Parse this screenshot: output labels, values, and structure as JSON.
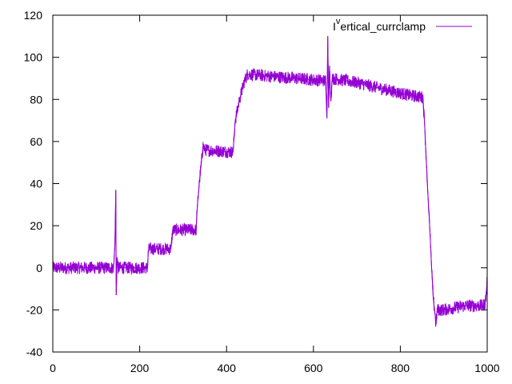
{
  "chart_data": {
    "type": "line",
    "title": "",
    "xlabel": "",
    "ylabel": "",
    "xlim": [
      0,
      1000
    ],
    "ylim": [
      -40,
      120
    ],
    "x_ticks": [
      0,
      200,
      400,
      600,
      800,
      1000
    ],
    "y_ticks": [
      -40,
      -20,
      0,
      20,
      40,
      60,
      80,
      100,
      120
    ],
    "grid": false,
    "legend_position": "top-right",
    "series": [
      {
        "name": "I^vertical_currclamp",
        "color": "#9400d3",
        "noise_amplitude": 3,
        "points": [
          [
            0,
            0
          ],
          [
            140,
            0
          ],
          [
            143,
            11
          ],
          [
            145,
            37
          ],
          [
            146,
            -13
          ],
          [
            148,
            5
          ],
          [
            150,
            0
          ],
          [
            218,
            0
          ],
          [
            220,
            8
          ],
          [
            222,
            9
          ],
          [
            272,
            9
          ],
          [
            276,
            18
          ],
          [
            330,
            18
          ],
          [
            333,
            30
          ],
          [
            338,
            42
          ],
          [
            342,
            50
          ],
          [
            346,
            58
          ],
          [
            350,
            56
          ],
          [
            415,
            55
          ],
          [
            420,
            70
          ],
          [
            430,
            80
          ],
          [
            440,
            88
          ],
          [
            448,
            92
          ],
          [
            500,
            91
          ],
          [
            560,
            90
          ],
          [
            620,
            89
          ],
          [
            628,
            89
          ],
          [
            631,
            71
          ],
          [
            633,
            110
          ],
          [
            635,
            76
          ],
          [
            637,
            96
          ],
          [
            640,
            79
          ],
          [
            643,
            90
          ],
          [
            700,
            88
          ],
          [
            760,
            85
          ],
          [
            820,
            82
          ],
          [
            852,
            81
          ],
          [
            856,
            68
          ],
          [
            860,
            50
          ],
          [
            864,
            33
          ],
          [
            868,
            18
          ],
          [
            872,
            0
          ],
          [
            876,
            -15
          ],
          [
            880,
            -22
          ],
          [
            882,
            -27
          ],
          [
            885,
            -20
          ],
          [
            900,
            -20
          ],
          [
            950,
            -18
          ],
          [
            990,
            -18
          ],
          [
            995,
            -17
          ],
          [
            998,
            -12
          ],
          [
            1000,
            -5
          ]
        ]
      }
    ]
  }
}
